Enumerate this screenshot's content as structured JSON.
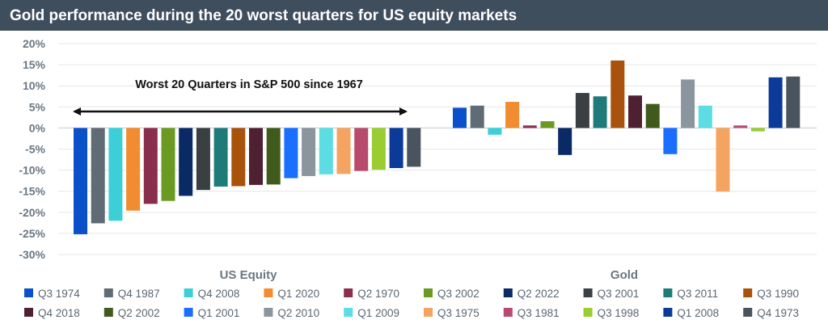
{
  "chart_data": {
    "type": "bar",
    "title": "Gold performance during the 20 worst quarters for US equity markets",
    "groups": [
      "US Equity",
      "Gold"
    ],
    "y_ticks": [
      "20%",
      "15%",
      "10%",
      "5%",
      "0%",
      "-5%",
      "-10%",
      "-15%",
      "-20%",
      "-25%",
      "-30%"
    ],
    "ylim": [
      -30,
      20
    ],
    "y_unit": "%",
    "grid": true,
    "legend_position": "bottom",
    "annotation": "Worst 20 Quarters in S&P 500 since 1967",
    "series": [
      {
        "name": "Q3 1974",
        "color": "#0a50c8",
        "values": [
          -25.2,
          4.8
        ]
      },
      {
        "name": "Q4 1987",
        "color": "#5f6b75",
        "values": [
          -22.6,
          5.3
        ]
      },
      {
        "name": "Q4 2008",
        "color": "#3ccfd8",
        "values": [
          -22.0,
          -1.6
        ]
      },
      {
        "name": "Q1 2020",
        "color": "#f28c30",
        "values": [
          -19.6,
          6.2
        ]
      },
      {
        "name": "Q2 1970",
        "color": "#8a2e4e",
        "values": [
          -18.0,
          0.6
        ]
      },
      {
        "name": "Q3 2002",
        "color": "#6b9a22",
        "values": [
          -17.3,
          1.6
        ]
      },
      {
        "name": "Q2 2022",
        "color": "#0a2a66",
        "values": [
          -16.1,
          -6.4
        ]
      },
      {
        "name": "Q3 2001",
        "color": "#3a3f44",
        "values": [
          -14.7,
          8.3
        ]
      },
      {
        "name": "Q3 2011",
        "color": "#1f7a7a",
        "values": [
          -13.9,
          7.5
        ]
      },
      {
        "name": "Q3 1990",
        "color": "#a8520c",
        "values": [
          -13.8,
          16.0
        ]
      },
      {
        "name": "Q4 2018",
        "color": "#4f2032",
        "values": [
          -13.5,
          7.7
        ]
      },
      {
        "name": "Q2 2002",
        "color": "#3f5a1a",
        "values": [
          -13.4,
          5.7
        ]
      },
      {
        "name": "Q1 2001",
        "color": "#1a6fff",
        "values": [
          -11.9,
          -6.2
        ]
      },
      {
        "name": "Q2 2010",
        "color": "#8a959e",
        "values": [
          -11.4,
          11.5
        ]
      },
      {
        "name": "Q1 2009",
        "color": "#5bdde3",
        "values": [
          -11.0,
          5.3
        ]
      },
      {
        "name": "Q3 1975",
        "color": "#f4a460",
        "values": [
          -10.9,
          -15.1
        ]
      },
      {
        "name": "Q3 1981",
        "color": "#b84a6e",
        "values": [
          -10.2,
          0.6
        ]
      },
      {
        "name": "Q3 1998",
        "color": "#9acd32",
        "values": [
          -9.9,
          -0.8
        ]
      },
      {
        "name": "Q1 2008",
        "color": "#0b3a99",
        "values": [
          -9.5,
          12.0
        ]
      },
      {
        "name": "Q4 1973",
        "color": "#4a545e",
        "values": [
          -9.2,
          12.2
        ]
      }
    ]
  }
}
